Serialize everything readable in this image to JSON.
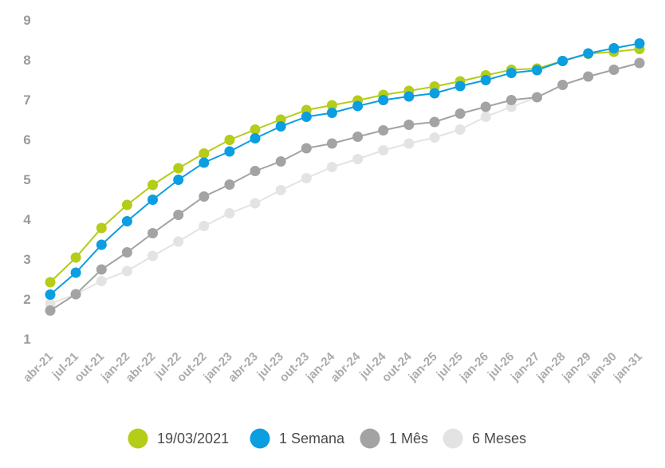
{
  "chart_data": {
    "type": "line",
    "title": "",
    "xlabel": "",
    "ylabel": "",
    "ylim": [
      1,
      9
    ],
    "yticks": [
      "1",
      "2",
      "3",
      "4",
      "5",
      "6",
      "7",
      "8",
      "9"
    ],
    "grid": false,
    "legend_position": "bottom",
    "categories": [
      "abr-21",
      "jul-21",
      "out-21",
      "jan-22",
      "abr-22",
      "jul-22",
      "out-22",
      "jan-23",
      "abr-23",
      "jul-23",
      "out-23",
      "jan-24",
      "abr-24",
      "jul-24",
      "out-24",
      "jan-25",
      "jul-25",
      "jan-26",
      "jul-26",
      "jan-27",
      "jan-28",
      "jan-29",
      "jan-30",
      "jan-31"
    ],
    "series": [
      {
        "name": "19/03/2021",
        "color": "#b5cc18",
        "values": [
          2.42,
          3.04,
          3.78,
          4.36,
          4.86,
          5.28,
          5.65,
          5.99,
          6.25,
          6.5,
          6.74,
          6.86,
          6.98,
          7.12,
          7.22,
          7.33,
          7.46,
          7.61,
          7.75,
          7.78,
          7.97,
          8.15,
          8.2,
          8.27
        ]
      },
      {
        "name": "1 Semana",
        "color": "#0b9ee0",
        "values": [
          2.11,
          2.66,
          3.36,
          3.95,
          4.49,
          4.99,
          5.42,
          5.7,
          6.03,
          6.33,
          6.57,
          6.67,
          6.84,
          6.99,
          7.08,
          7.16,
          7.34,
          7.49,
          7.67,
          7.74,
          7.97,
          8.16,
          8.29,
          8.41
        ]
      },
      {
        "name": "1 Mês",
        "color": "#a3a3a3",
        "values": [
          1.71,
          2.12,
          2.74,
          3.17,
          3.65,
          4.11,
          4.57,
          4.87,
          5.21,
          5.45,
          5.78,
          5.9,
          6.07,
          6.23,
          6.37,
          6.44,
          6.65,
          6.82,
          6.99,
          7.06,
          7.37,
          7.58,
          7.75,
          7.92
        ]
      },
      {
        "name": "6 Meses",
        "color": "#e3e3e3",
        "values": [
          1.88,
          2.12,
          2.45,
          2.7,
          3.08,
          3.44,
          3.83,
          4.15,
          4.4,
          4.73,
          5.03,
          5.31,
          5.51,
          5.73,
          5.9,
          6.05,
          6.25,
          6.57,
          6.82,
          7.06,
          7.37,
          7.58,
          7.75,
          7.92
        ]
      }
    ]
  }
}
